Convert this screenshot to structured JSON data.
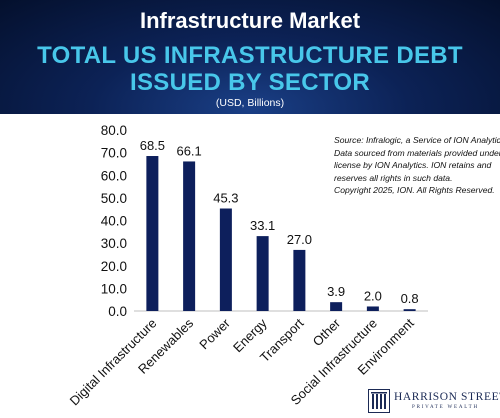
{
  "header": {
    "title": "Infrastructure Market",
    "subtitle_line1": "TOTAL US INFRASTRUCTURE DEBT",
    "subtitle_line2": "ISSUED BY SECTOR",
    "units": "(USD, Billions)"
  },
  "source_note": [
    "Source: Infralogic, a Service of ION Analytics.",
    "Data sourced from materials provided under",
    "license by ION Analytics. ION retains and",
    "reserves all rights in such data.",
    "Copyright 2025, ION. All Rights Reserved."
  ],
  "logo": {
    "name": "HARRISON STREET",
    "tagline": "PRIVATE WEALTH"
  },
  "colors": {
    "bar": "#0d1f5c",
    "header_title": "#ffffff",
    "header_subtitle": "#48c7ea"
  },
  "chart_data": {
    "type": "bar",
    "categories": [
      "Digital Infrastructure",
      "Renewables",
      "Power",
      "Energy",
      "Transport",
      "Other",
      "Social Infrastructure",
      "Environment"
    ],
    "values": [
      68.5,
      66.1,
      45.3,
      33.1,
      27.0,
      3.9,
      2.0,
      0.8
    ],
    "value_labels": [
      "68.5",
      "66.1",
      "45.3",
      "33.1",
      "27.0",
      "3.9",
      "2.0",
      "0.8"
    ],
    "yticks": [
      "0.0",
      "10.0",
      "20.0",
      "30.0",
      "40.0",
      "50.0",
      "60.0",
      "70.0",
      "80.0"
    ],
    "ylim": [
      0,
      80
    ],
    "grid": false
  }
}
